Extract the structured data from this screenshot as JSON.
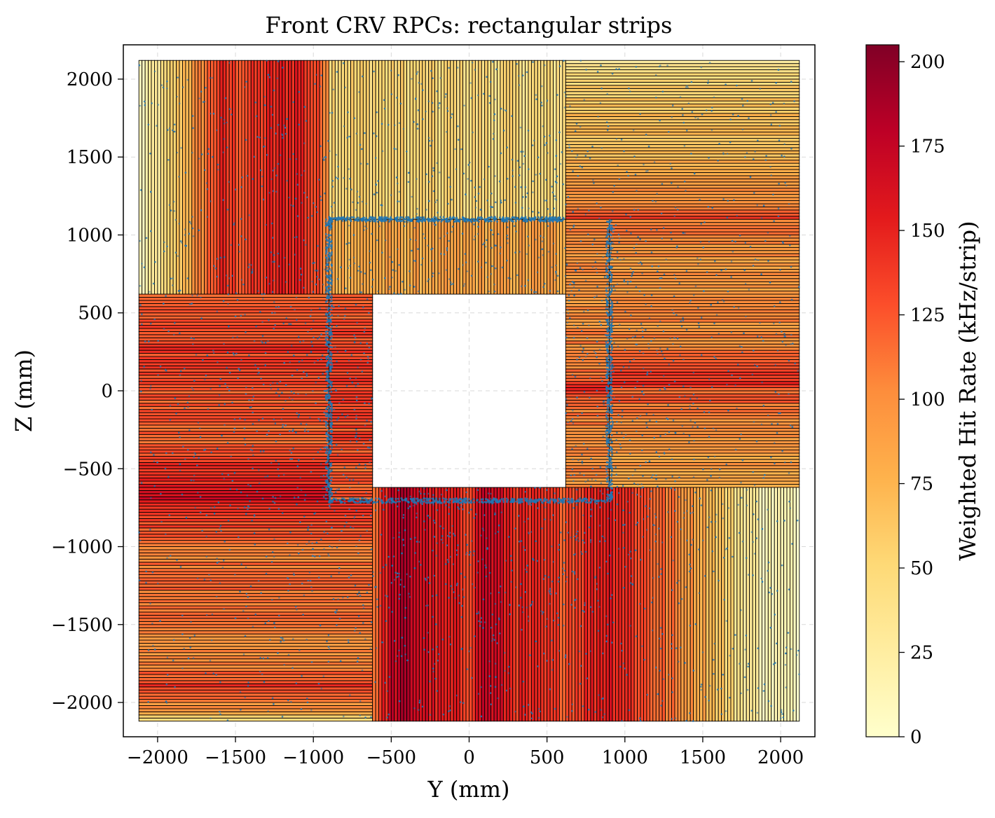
{
  "chart_data": {
    "type": "heatmap",
    "title": "Front CRV RPCs: rectangular strips",
    "xlabel": "Y (mm)",
    "ylabel": "Z (mm)",
    "xlim": [
      -2220,
      2220
    ],
    "ylim": [
      -2220,
      2220
    ],
    "xticks": [
      -2000,
      -1500,
      -1000,
      -500,
      0,
      500,
      1000,
      1500,
      2000
    ],
    "yticks": [
      -2000,
      -1500,
      -1000,
      -500,
      0,
      500,
      1000,
      1500,
      2000
    ],
    "xtick_labels": [
      "−2000",
      "−1500",
      "−1000",
      "−500",
      "0",
      "500",
      "1000",
      "1500",
      "2000"
    ],
    "ytick_labels": [
      "−2000",
      "−1500",
      "−1000",
      "−500",
      "0",
      "500",
      "1000",
      "1500",
      "2000"
    ],
    "grid": true,
    "colorbar": {
      "label": "Weighted Hit Rate (kHz/strip)",
      "range": [
        0,
        205
      ],
      "ticks": [
        0,
        25,
        50,
        75,
        100,
        125,
        150,
        175,
        200
      ],
      "colormap": "YlOrRd",
      "stops": [
        "#ffffcc",
        "#ffeda0",
        "#fed976",
        "#feb24c",
        "#fd8d3c",
        "#fc4e2a",
        "#e31a1c",
        "#bd0026",
        "#800026"
      ]
    },
    "hole": {
      "y": [
        -620,
        620
      ],
      "z": [
        -620,
        620
      ]
    },
    "hit_points_color": "#1f77b4",
    "modules": [
      {
        "name": "top-left",
        "orientation": "vertical",
        "y": [
          -2120,
          -900
        ],
        "z": [
          620,
          2120
        ],
        "strip_pitch": 20,
        "profile": [
          [
            -2120,
            5
          ],
          [
            -1950,
            40
          ],
          [
            -1750,
            95
          ],
          [
            -1600,
            140
          ],
          [
            -1450,
            130
          ],
          [
            -1250,
            145
          ],
          [
            -1100,
            155
          ],
          [
            -950,
            120
          ],
          [
            -900,
            110
          ]
        ]
      },
      {
        "name": "top-center",
        "orientation": "vertical",
        "y": [
          -900,
          620
        ],
        "z": [
          1100,
          2120
        ],
        "strip_pitch": 20,
        "profile": [
          [
            -900,
            55
          ],
          [
            -400,
            50
          ],
          [
            0,
            48
          ],
          [
            400,
            45
          ],
          [
            620,
            42
          ]
        ]
      },
      {
        "name": "top-right",
        "orientation": "horizontal",
        "y": [
          620,
          2120
        ],
        "z": [
          1100,
          2120
        ],
        "strip_pitch": 20,
        "profile": [
          [
            1100,
            150
          ],
          [
            1150,
            115
          ],
          [
            1300,
            90
          ],
          [
            1500,
            75
          ],
          [
            1800,
            65
          ],
          [
            2050,
            45
          ],
          [
            2120,
            20
          ]
        ]
      },
      {
        "name": "upper-inner",
        "orientation": "vertical",
        "y": [
          -900,
          620
        ],
        "z": [
          620,
          1100
        ],
        "strip_pitch": 20,
        "profile": [
          [
            -900,
            80
          ],
          [
            0,
            82
          ],
          [
            620,
            85
          ]
        ]
      },
      {
        "name": "right",
        "orientation": "horizontal",
        "y": [
          900,
          2120
        ],
        "z": [
          -620,
          1100
        ],
        "strip_pitch": 20,
        "profile": [
          [
            1100,
            110
          ],
          [
            900,
            95
          ],
          [
            600,
            92
          ],
          [
            300,
            105
          ],
          [
            50,
            140
          ],
          [
            0,
            120
          ],
          [
            -300,
            95
          ],
          [
            -620,
            85
          ]
        ]
      },
      {
        "name": "right-inner",
        "orientation": "horizontal",
        "y": [
          620,
          900
        ],
        "z": [
          -620,
          1100
        ],
        "strip_pitch": 20,
        "profile": [
          [
            1100,
            100
          ],
          [
            500,
            95
          ],
          [
            100,
            115
          ],
          [
            0,
            150
          ],
          [
            -100,
            110
          ],
          [
            -620,
            100
          ]
        ]
      },
      {
        "name": "left",
        "orientation": "horizontal",
        "y": [
          -2120,
          -620
        ],
        "z": [
          -2120,
          620
        ],
        "strip_pitch": 20,
        "profile": [
          [
            620,
            120
          ],
          [
            300,
            135
          ],
          [
            100,
            130
          ],
          [
            0,
            125
          ],
          [
            -300,
            120
          ],
          [
            -700,
            160
          ],
          [
            -1000,
            110
          ],
          [
            -1350,
            115
          ],
          [
            -1700,
            95
          ],
          [
            -1900,
            140
          ],
          [
            -2050,
            85
          ],
          [
            -2120,
            30
          ]
        ]
      },
      {
        "name": "left-inner",
        "orientation": "horizontal",
        "y": [
          -900,
          -620
        ],
        "z": [
          -700,
          620
        ],
        "strip_pitch": 20,
        "profile": [
          [
            620,
            125
          ],
          [
            300,
            130
          ],
          [
            0,
            135
          ],
          [
            -400,
            125
          ],
          [
            -700,
            120
          ]
        ]
      },
      {
        "name": "bottom",
        "orientation": "vertical",
        "y": [
          -620,
          2120
        ],
        "z": [
          -2120,
          -620
        ],
        "strip_pitch": 20,
        "profile": [
          [
            -620,
            110
          ],
          [
            -500,
            170
          ],
          [
            -400,
            180
          ],
          [
            -200,
            150
          ],
          [
            0,
            140
          ],
          [
            100,
            175
          ],
          [
            300,
            145
          ],
          [
            600,
            130
          ],
          [
            900,
            160
          ],
          [
            1200,
            120
          ],
          [
            1500,
            85
          ],
          [
            1700,
            45
          ],
          [
            1900,
            15
          ],
          [
            2120,
            5
          ]
        ]
      }
    ]
  }
}
